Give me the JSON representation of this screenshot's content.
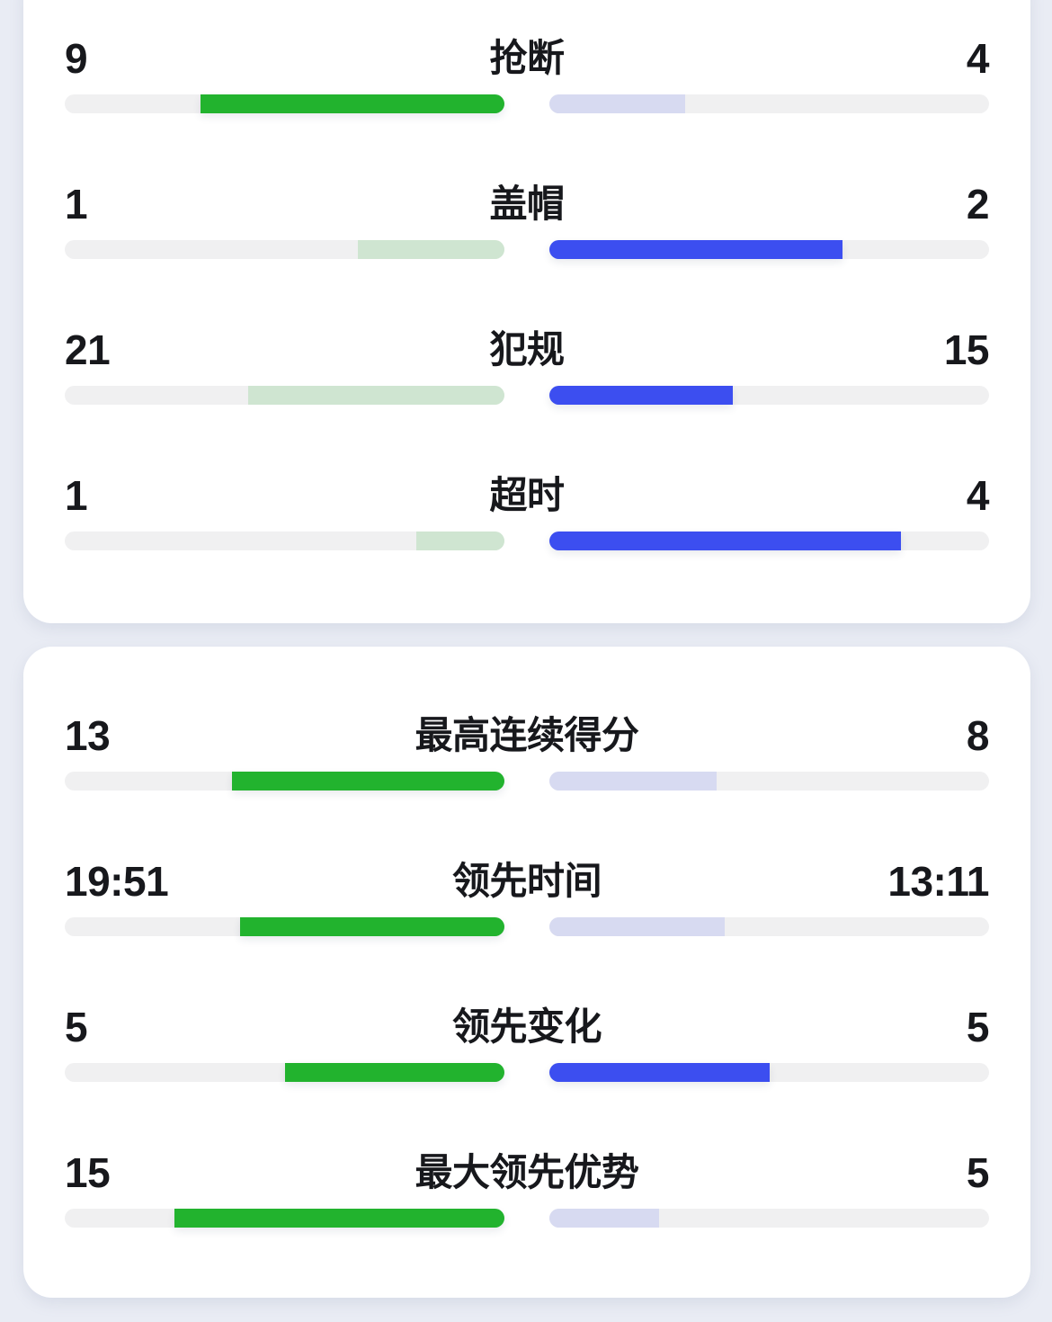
{
  "page": {
    "background": "#e9ecf4",
    "card_background": "#ffffff",
    "text_color": "#17181c"
  },
  "colors": {
    "home_strong": "#22b32e",
    "home_pale": "#cfe5d1",
    "away_strong": "#3c4ef0",
    "away_pale": "#d7daf1",
    "track": "#f0f0f1"
  },
  "chart_data": {
    "type": "bar",
    "layout": "mirrored-team-comparison",
    "legend_position": "none",
    "grid": false,
    "cards": [
      {
        "rows": [
          {
            "label": "抢断",
            "left_value": "9",
            "right_value": "4",
            "left_pct": 69.2,
            "right_pct": 30.8,
            "left_style": "strong",
            "right_style": "pale"
          },
          {
            "label": "盖帽",
            "left_value": "1",
            "right_value": "2",
            "left_pct": 33.3,
            "right_pct": 66.7,
            "left_style": "pale",
            "right_style": "strong"
          },
          {
            "label": "犯规",
            "left_value": "21",
            "right_value": "15",
            "left_pct": 58.3,
            "right_pct": 41.7,
            "left_style": "pale",
            "right_style": "strong"
          },
          {
            "label": "超时",
            "left_value": "1",
            "right_value": "4",
            "left_pct": 20.0,
            "right_pct": 80.0,
            "left_style": "pale",
            "right_style": "strong"
          }
        ]
      },
      {
        "rows": [
          {
            "label": "最高连续得分",
            "left_value": "13",
            "right_value": "8",
            "left_pct": 61.9,
            "right_pct": 38.1,
            "left_style": "strong",
            "right_style": "pale"
          },
          {
            "label": "领先时间",
            "left_value": "19:51",
            "right_value": "13:11",
            "left_pct": 60.1,
            "right_pct": 39.9,
            "left_style": "strong",
            "right_style": "pale"
          },
          {
            "label": "领先变化",
            "left_value": "5",
            "right_value": "5",
            "left_pct": 50.0,
            "right_pct": 50.0,
            "left_style": "strong",
            "right_style": "strong"
          },
          {
            "label": "最大领先优势",
            "left_value": "15",
            "right_value": "5",
            "left_pct": 75.0,
            "right_pct": 25.0,
            "left_style": "strong",
            "right_style": "pale"
          }
        ]
      }
    ]
  }
}
